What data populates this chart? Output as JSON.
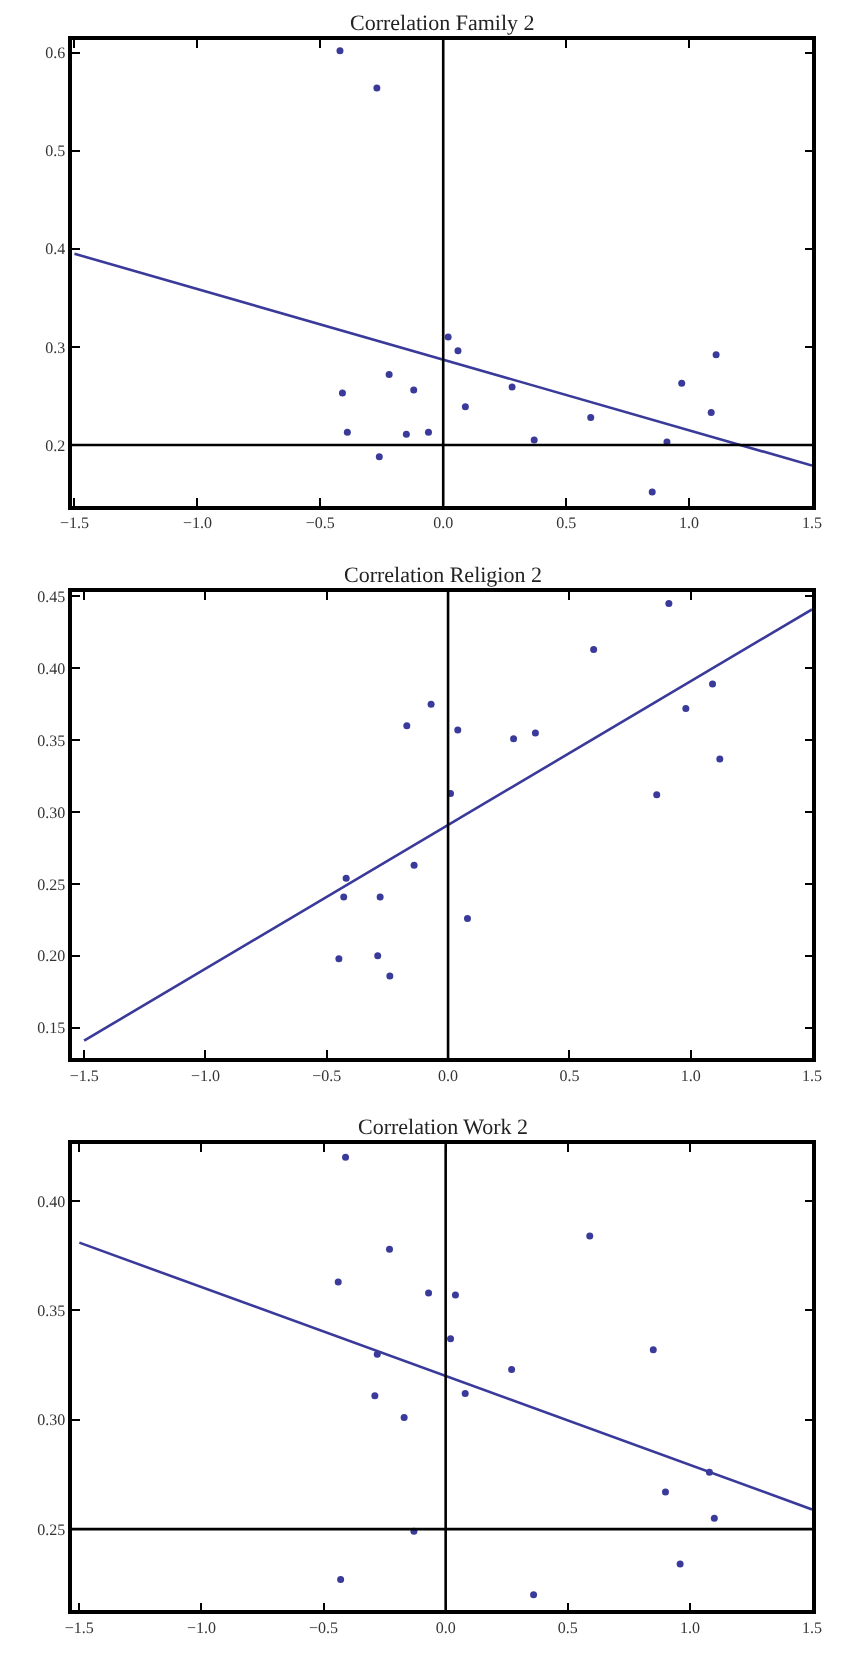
{
  "chart_data": [
    {
      "type": "scatter",
      "title": "Correlation Family 2",
      "xlim": [
        -1.51,
        1.5
      ],
      "ylim": [
        0.138,
        0.613
      ],
      "xticks": [
        {
          "value": -1.5,
          "label": "−1.5"
        },
        {
          "value": -1.0,
          "label": "−1.0"
        },
        {
          "value": -0.5,
          "label": "−0.5"
        },
        {
          "value": 0,
          "label": "0.0"
        },
        {
          "value": 0.5,
          "label": "0.5"
        },
        {
          "value": 1.0,
          "label": "1.0"
        },
        {
          "value": 1.5,
          "label": "1.5"
        }
      ],
      "yticks": [
        0.2,
        0.3,
        0.4,
        0.5,
        0.6
      ],
      "marker": "circle",
      "ref_lines": [
        {
          "axis": "x",
          "value": 0,
          "color": "#000000"
        },
        {
          "axis": "y",
          "value": 0.2,
          "color": "#000000"
        }
      ],
      "series": [
        {
          "color": "#3a3a9a",
          "x": [
            -0.42,
            -0.27,
            -0.41,
            -0.39,
            -0.22,
            -0.26,
            -0.12,
            -0.15,
            -0.06,
            0.02,
            0.06,
            0.09,
            0.28,
            0.37,
            0.6,
            0.91,
            0.85,
            0.97,
            1.11,
            1.09
          ],
          "values": [
            0.602,
            0.564,
            0.253,
            0.213,
            0.272,
            0.188,
            0.256,
            0.211,
            0.213,
            0.31,
            0.296,
            0.239,
            0.259,
            0.205,
            0.228,
            0.203,
            0.152,
            0.263,
            0.292,
            0.233
          ]
        },
        {
          "type": "line",
          "color": "#3a3a9a",
          "marker": "none",
          "x": [
            -1.5,
            1.5
          ],
          "values": [
            0.395,
            0.179
          ]
        }
      ]
    },
    {
      "type": "scatter",
      "title": "Correlation Religion 2",
      "xlim": [
        -1.55,
        1.5
      ],
      "ylim": [
        0.129,
        0.453
      ],
      "xticks": [
        {
          "value": -1.5,
          "label": "−1.5"
        },
        {
          "value": -1.0,
          "label": "−1.0"
        },
        {
          "value": -0.5,
          "label": "−0.5"
        },
        {
          "value": 0,
          "label": "0.0"
        },
        {
          "value": 0.5,
          "label": "0.5"
        },
        {
          "value": 1.0,
          "label": "1.0"
        },
        {
          "value": 1.5,
          "label": "1.5"
        }
      ],
      "yticks": [
        0.15,
        {
          "value": 0.2,
          "label": "0.20"
        },
        0.25,
        {
          "value": 0.3,
          "label": "0.30"
        },
        0.35,
        {
          "value": 0.4,
          "label": "0.40"
        },
        0.45
      ],
      "marker": "circle",
      "ref_lines": [
        {
          "axis": "x",
          "value": 0,
          "color": "#000000"
        }
      ],
      "series": [
        {
          "color": "#3a3a9a",
          "x": [
            0.91,
            0.6,
            1.09,
            0.98,
            -0.07,
            -0.17,
            0.04,
            0.27,
            0.36,
            1.12,
            0.01,
            0.86,
            -0.14,
            -0.42,
            -0.43,
            -0.28,
            0.08,
            -0.45,
            -0.29,
            -0.24
          ],
          "values": [
            0.445,
            0.413,
            0.389,
            0.372,
            0.375,
            0.36,
            0.357,
            0.351,
            0.355,
            0.337,
            0.313,
            0.312,
            0.263,
            0.254,
            0.241,
            0.241,
            0.226,
            0.198,
            0.2,
            0.186
          ]
        },
        {
          "type": "line",
          "color": "#3a3a9a",
          "marker": "none",
          "x": [
            -1.5,
            1.5
          ],
          "values": [
            0.141,
            0.441
          ]
        }
      ]
    },
    {
      "type": "scatter",
      "title": "Correlation Work 2",
      "xlim": [
        -1.53,
        1.5
      ],
      "ylim": [
        0.213,
        0.426
      ],
      "xticks": [
        {
          "value": -1.5,
          "label": "−1.5"
        },
        {
          "value": -1.0,
          "label": "−1.0"
        },
        {
          "value": -0.5,
          "label": "−0.5"
        },
        {
          "value": 0,
          "label": "0.0"
        },
        {
          "value": 0.5,
          "label": "0.5"
        },
        {
          "value": 1.0,
          "label": "1.0"
        },
        {
          "value": 1.5,
          "label": "1.5"
        }
      ],
      "yticks": [
        0.25,
        {
          "value": 0.3,
          "label": "0.30"
        },
        0.35,
        {
          "value": 0.4,
          "label": "0.40"
        }
      ],
      "marker": "circle",
      "ref_lines": [
        {
          "axis": "x",
          "value": 0,
          "color": "#000000"
        },
        {
          "axis": "y",
          "value": 0.25,
          "color": "#000000"
        }
      ],
      "series": [
        {
          "color": "#3a3a9a",
          "x": [
            -0.41,
            0.59,
            -0.23,
            -0.44,
            -0.07,
            0.04,
            0.02,
            0.85,
            -0.28,
            0.27,
            0.08,
            -0.29,
            -0.17,
            1.08,
            0.9,
            1.1,
            -0.13,
            0.96,
            -0.43,
            0.36
          ],
          "values": [
            0.42,
            0.384,
            0.378,
            0.363,
            0.358,
            0.357,
            0.337,
            0.332,
            0.33,
            0.323,
            0.312,
            0.311,
            0.301,
            0.276,
            0.267,
            0.255,
            0.249,
            0.234,
            0.227,
            0.22
          ]
        },
        {
          "type": "line",
          "color": "#3a3a9a",
          "marker": "none",
          "x": [
            -1.5,
            1.5
          ],
          "values": [
            0.381,
            0.259
          ]
        }
      ]
    }
  ]
}
